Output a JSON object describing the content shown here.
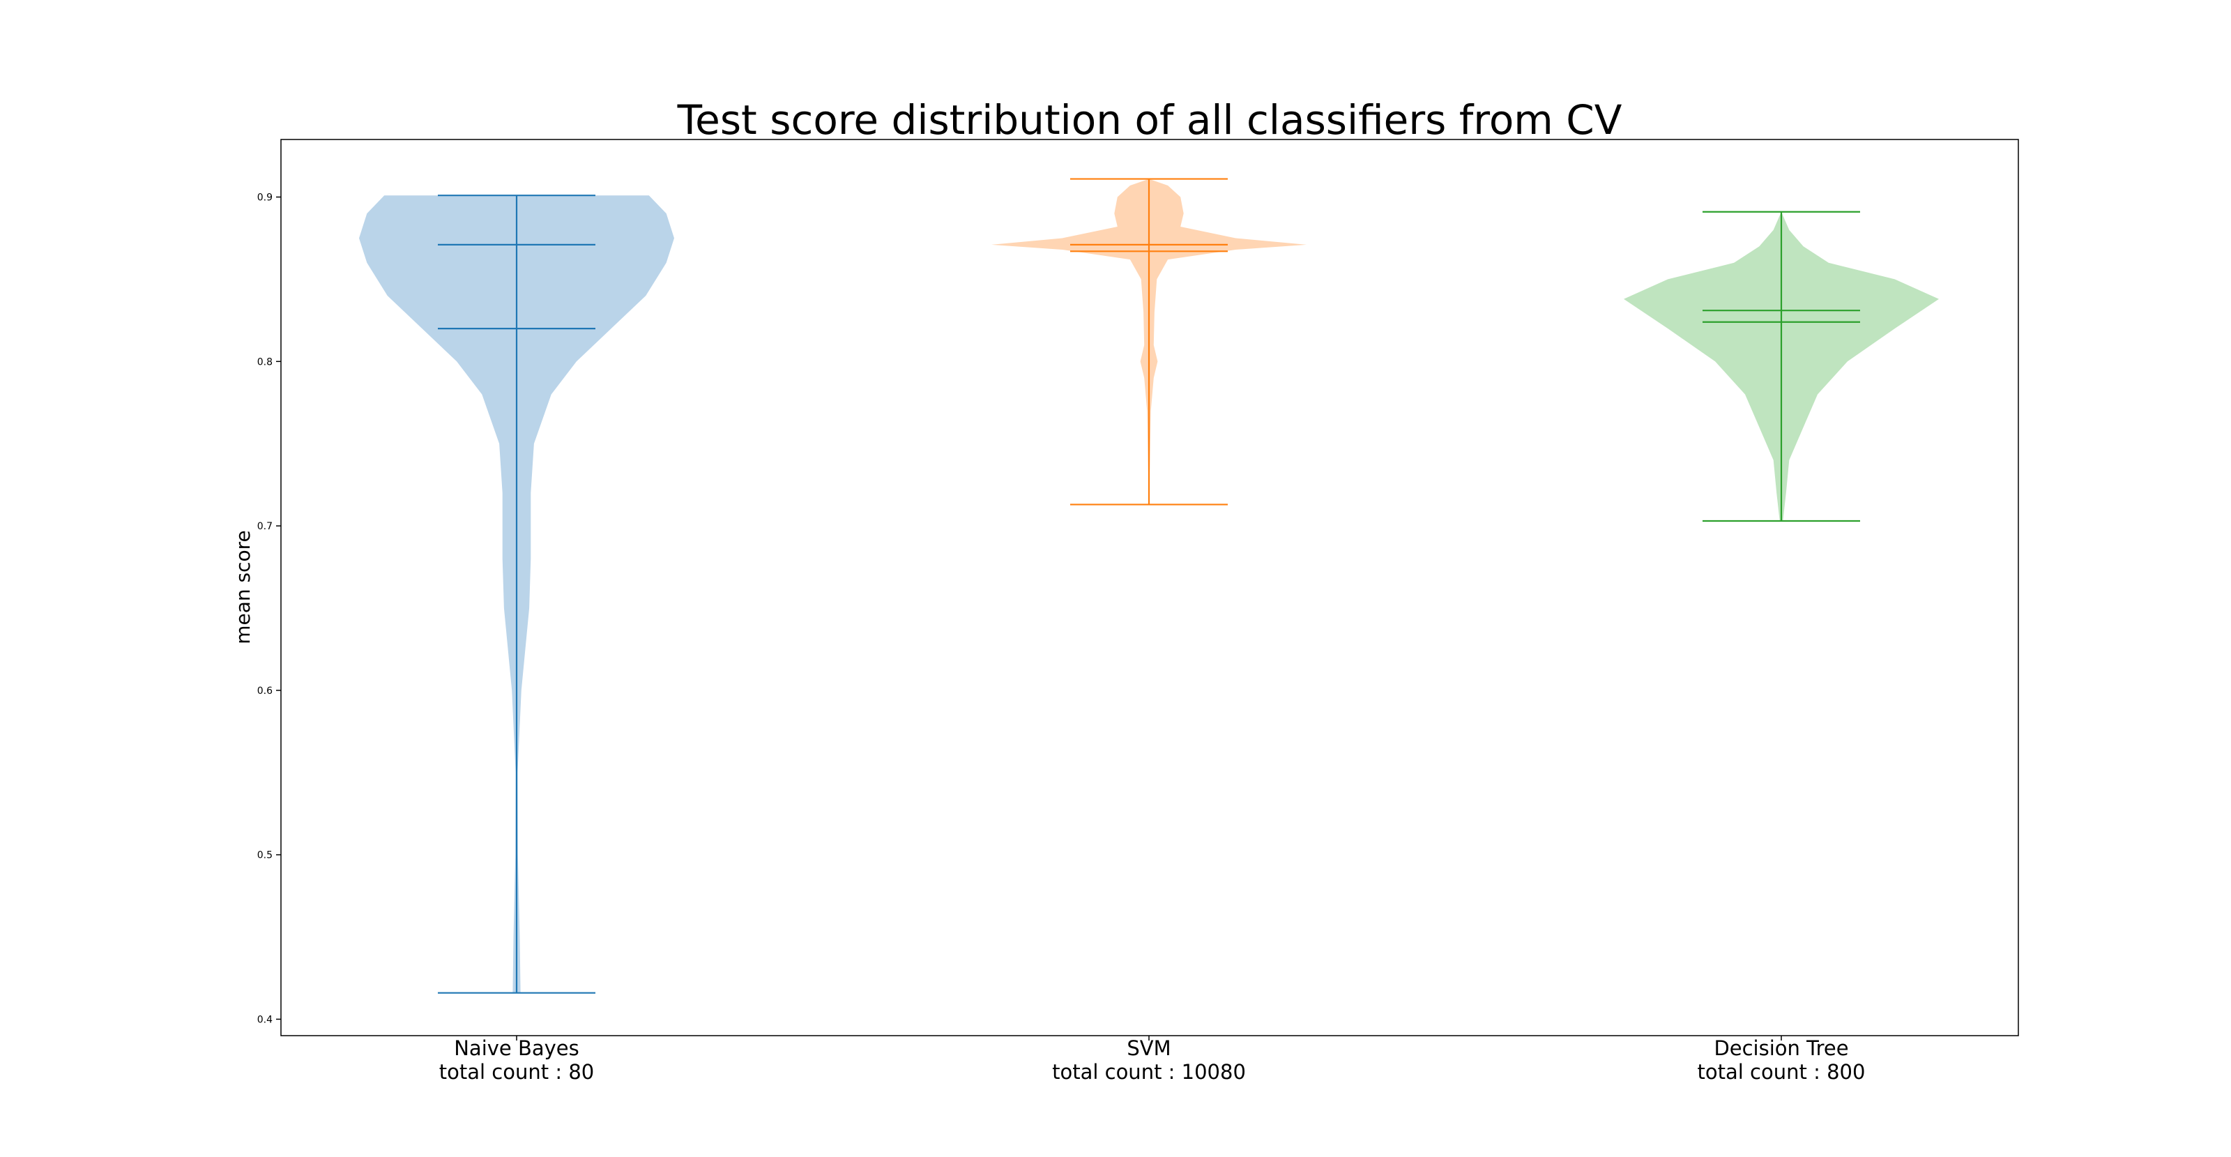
{
  "chart_data": {
    "type": "violin",
    "title": "Test score distribution of all classifiers from CV",
    "xlabel": "",
    "ylabel": "mean score",
    "ylim": [
      0.39,
      0.935
    ],
    "yticks": [
      "0.4",
      "0.5",
      "0.6",
      "0.7",
      "0.8",
      "0.9"
    ],
    "grid": false,
    "series": [
      {
        "name": "Naive Bayes",
        "tick_line1": "Naive Bayes",
        "tick_line2": "total count : 80",
        "color": "#1f77b4",
        "fill": "#bad4e9",
        "min": 0.416,
        "max": 0.901,
        "mean": 0.82,
        "median": 0.871,
        "profile": [
          [
            0.416,
            0.025
          ],
          [
            0.45,
            0.02
          ],
          [
            0.5,
            0.008
          ],
          [
            0.55,
            0.006
          ],
          [
            0.6,
            0.03
          ],
          [
            0.65,
            0.08
          ],
          [
            0.68,
            0.09
          ],
          [
            0.72,
            0.09
          ],
          [
            0.75,
            0.11
          ],
          [
            0.78,
            0.22
          ],
          [
            0.8,
            0.38
          ],
          [
            0.82,
            0.6
          ],
          [
            0.84,
            0.82
          ],
          [
            0.86,
            0.95
          ],
          [
            0.875,
            1.0
          ],
          [
            0.89,
            0.95
          ],
          [
            0.901,
            0.84
          ]
        ]
      },
      {
        "name": "SVM",
        "tick_line1": "SVM",
        "tick_line2": "total count : 10080",
        "color": "#ff7f0e",
        "fill": "#ffd5b3",
        "min": 0.713,
        "max": 0.911,
        "mean": 0.867,
        "median": 0.871,
        "profile": [
          [
            0.713,
            0.0
          ],
          [
            0.74,
            0.006
          ],
          [
            0.77,
            0.012
          ],
          [
            0.79,
            0.03
          ],
          [
            0.8,
            0.055
          ],
          [
            0.81,
            0.03
          ],
          [
            0.83,
            0.035
          ],
          [
            0.85,
            0.05
          ],
          [
            0.862,
            0.12
          ],
          [
            0.868,
            0.55
          ],
          [
            0.871,
            1.0
          ],
          [
            0.875,
            0.55
          ],
          [
            0.882,
            0.2
          ],
          [
            0.89,
            0.22
          ],
          [
            0.9,
            0.2
          ],
          [
            0.907,
            0.12
          ],
          [
            0.911,
            0.0
          ]
        ]
      },
      {
        "name": "Decision Tree",
        "tick_line1": "Decision Tree",
        "tick_line2": "total count : 800",
        "color": "#2ca02c",
        "fill": "#bfe4bf",
        "min": 0.703,
        "max": 0.891,
        "mean": 0.824,
        "median": 0.831,
        "profile": [
          [
            0.703,
            0.01
          ],
          [
            0.72,
            0.03
          ],
          [
            0.74,
            0.05
          ],
          [
            0.76,
            0.14
          ],
          [
            0.78,
            0.23
          ],
          [
            0.8,
            0.42
          ],
          [
            0.82,
            0.72
          ],
          [
            0.838,
            1.0
          ],
          [
            0.85,
            0.72
          ],
          [
            0.86,
            0.3
          ],
          [
            0.87,
            0.14
          ],
          [
            0.88,
            0.05
          ],
          [
            0.891,
            0.0
          ]
        ]
      }
    ]
  }
}
